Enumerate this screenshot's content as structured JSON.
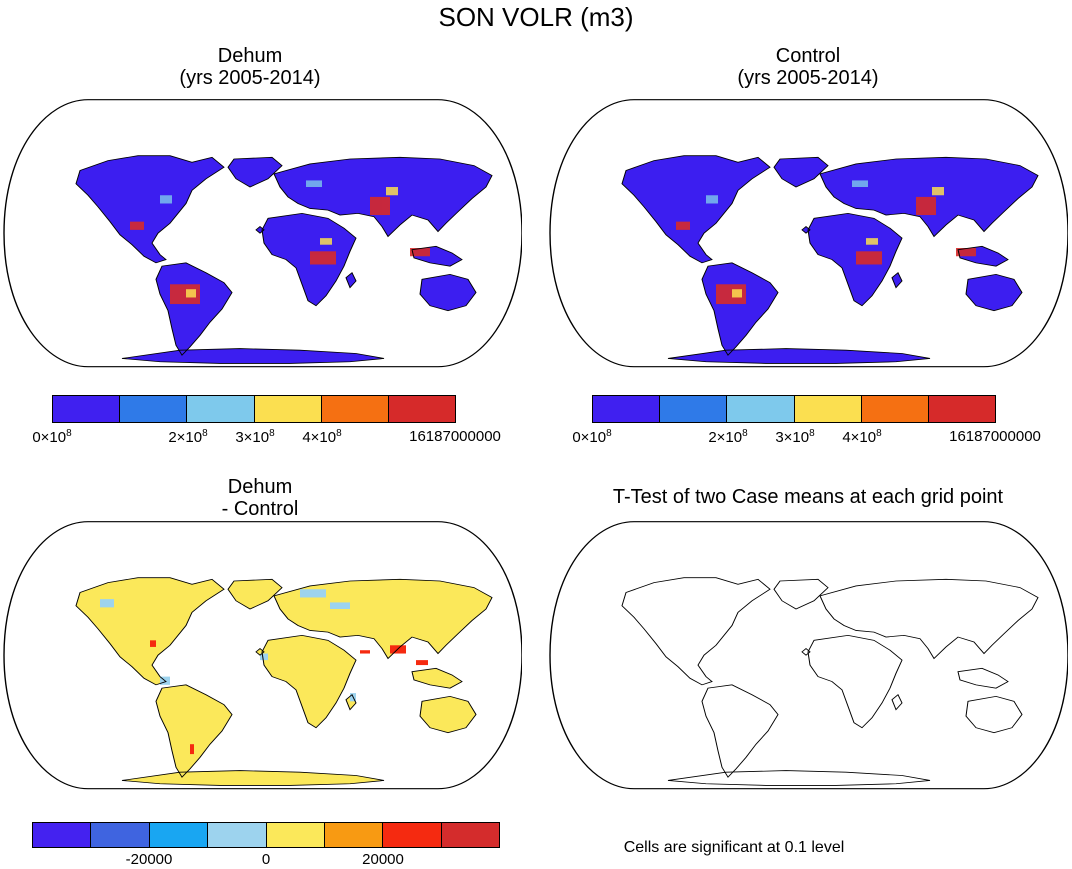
{
  "main_title": "SON VOLR (m3)",
  "panels": {
    "dehum": {
      "title_line1": "Dehum",
      "title_line2": "(yrs 2005-2014)"
    },
    "control": {
      "title_line1": "Control",
      "title_line2": "(yrs 2005-2014)"
    },
    "diff": {
      "title_line1": "Dehum",
      "title_line2": "- Control"
    },
    "ttest": {
      "title": "T-Test of two Case means at each grid point",
      "footnote": "Cells are significant at 0.1 level"
    }
  },
  "colorbars": {
    "absolute": {
      "colors": [
        "#4020f0",
        "#2f7ae8",
        "#7ec9ec",
        "#fbdf50",
        "#f57012",
        "#d62a2a"
      ],
      "labels": [
        {
          "mantissa": "0",
          "exp": "8"
        },
        {
          "mantissa": "2",
          "exp": "8"
        },
        {
          "mantissa": "3",
          "exp": "8"
        },
        {
          "mantissa": "4",
          "exp": "8"
        }
      ],
      "max_label": "16187000000"
    },
    "difference": {
      "colors": [
        "#4422f0",
        "#3f64e0",
        "#19a6f2",
        "#9dd3ee",
        "#fbe85a",
        "#f89a12",
        "#f52a10",
        "#d42c2c"
      ],
      "labels": [
        "-20000",
        "0",
        "20000"
      ]
    }
  }
}
